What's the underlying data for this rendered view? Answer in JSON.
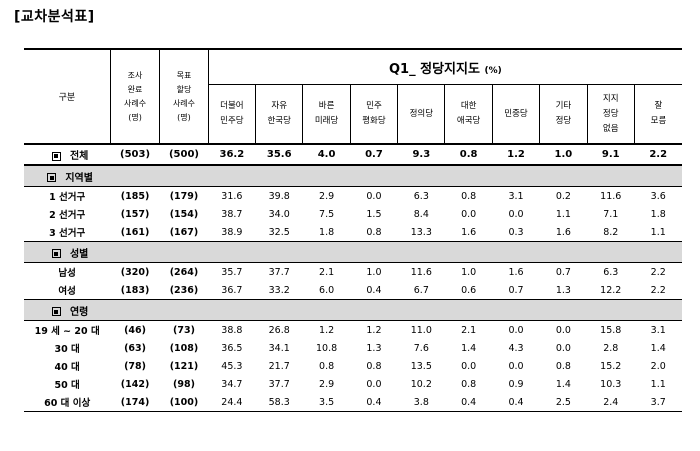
{
  "title": "[교차분석표]",
  "question": {
    "title": "Q1_ 정당지지도",
    "unit": "(%)"
  },
  "header": {
    "row_label": "구분",
    "sample_count": [
      "조사",
      "완료",
      "사례수",
      "(명)"
    ],
    "target_count": [
      "목표",
      "할당",
      "사례수",
      "(명)"
    ],
    "parties": [
      [
        "더불어",
        "민주당"
      ],
      [
        "자유",
        "한국당"
      ],
      [
        "바른",
        "미래당"
      ],
      [
        "민주",
        "평화당"
      ],
      [
        "정의당"
      ],
      [
        "대한",
        "애국당"
      ],
      [
        "민중당"
      ],
      [
        "기타",
        "정당"
      ],
      [
        "지지",
        "정당",
        "없음"
      ],
      [
        "잘",
        "모름"
      ]
    ]
  },
  "total": {
    "label": "전체",
    "n": "(503)",
    "target": "(500)",
    "values": [
      "36.2",
      "35.6",
      "4.0",
      "0.7",
      "9.3",
      "0.8",
      "1.2",
      "1.0",
      "9.1",
      "2.2"
    ]
  },
  "groups": [
    {
      "label": "지역별",
      "rows": [
        {
          "label": "1 선거구",
          "n": "(185)",
          "target": "(179)",
          "values": [
            "31.6",
            "39.8",
            "2.9",
            "0.0",
            "6.3",
            "0.8",
            "3.1",
            "0.2",
            "11.6",
            "3.6"
          ]
        },
        {
          "label": "2 선거구",
          "n": "(157)",
          "target": "(154)",
          "values": [
            "38.7",
            "34.0",
            "7.5",
            "1.5",
            "8.4",
            "0.0",
            "0.0",
            "1.1",
            "7.1",
            "1.8"
          ]
        },
        {
          "label": "3 선거구",
          "n": "(161)",
          "target": "(167)",
          "values": [
            "38.9",
            "32.5",
            "1.8",
            "0.8",
            "13.3",
            "1.6",
            "0.3",
            "1.6",
            "8.2",
            "1.1"
          ]
        }
      ]
    },
    {
      "label": "성별",
      "rows": [
        {
          "label": "남성",
          "n": "(320)",
          "target": "(264)",
          "values": [
            "35.7",
            "37.7",
            "2.1",
            "1.0",
            "11.6",
            "1.0",
            "1.6",
            "0.7",
            "6.3",
            "2.2"
          ]
        },
        {
          "label": "여성",
          "n": "(183)",
          "target": "(236)",
          "values": [
            "36.7",
            "33.2",
            "6.0",
            "0.4",
            "6.7",
            "0.6",
            "0.7",
            "1.3",
            "12.2",
            "2.2"
          ]
        }
      ]
    },
    {
      "label": "연령",
      "rows": [
        {
          "label": "19 세 ~ 20 대",
          "n": "(46)",
          "target": "(73)",
          "values": [
            "38.8",
            "26.8",
            "1.2",
            "1.2",
            "11.0",
            "2.1",
            "0.0",
            "0.0",
            "15.8",
            "3.1"
          ]
        },
        {
          "label": "30 대",
          "n": "(63)",
          "target": "(108)",
          "values": [
            "36.5",
            "34.1",
            "10.8",
            "1.3",
            "7.6",
            "1.4",
            "4.3",
            "0.0",
            "2.8",
            "1.4"
          ]
        },
        {
          "label": "40 대",
          "n": "(78)",
          "target": "(121)",
          "values": [
            "45.3",
            "21.7",
            "0.8",
            "0.8",
            "13.5",
            "0.0",
            "0.0",
            "0.8",
            "15.2",
            "2.0"
          ]
        },
        {
          "label": "50 대",
          "n": "(142)",
          "target": "(98)",
          "values": [
            "34.7",
            "37.7",
            "2.9",
            "0.0",
            "10.2",
            "0.8",
            "0.9",
            "1.4",
            "10.3",
            "1.1"
          ]
        },
        {
          "label": "60 대 이상",
          "n": "(174)",
          "target": "(100)",
          "values": [
            "24.4",
            "58.3",
            "3.5",
            "0.4",
            "3.8",
            "0.4",
            "0.4",
            "2.5",
            "2.4",
            "3.7"
          ]
        }
      ]
    }
  ]
}
